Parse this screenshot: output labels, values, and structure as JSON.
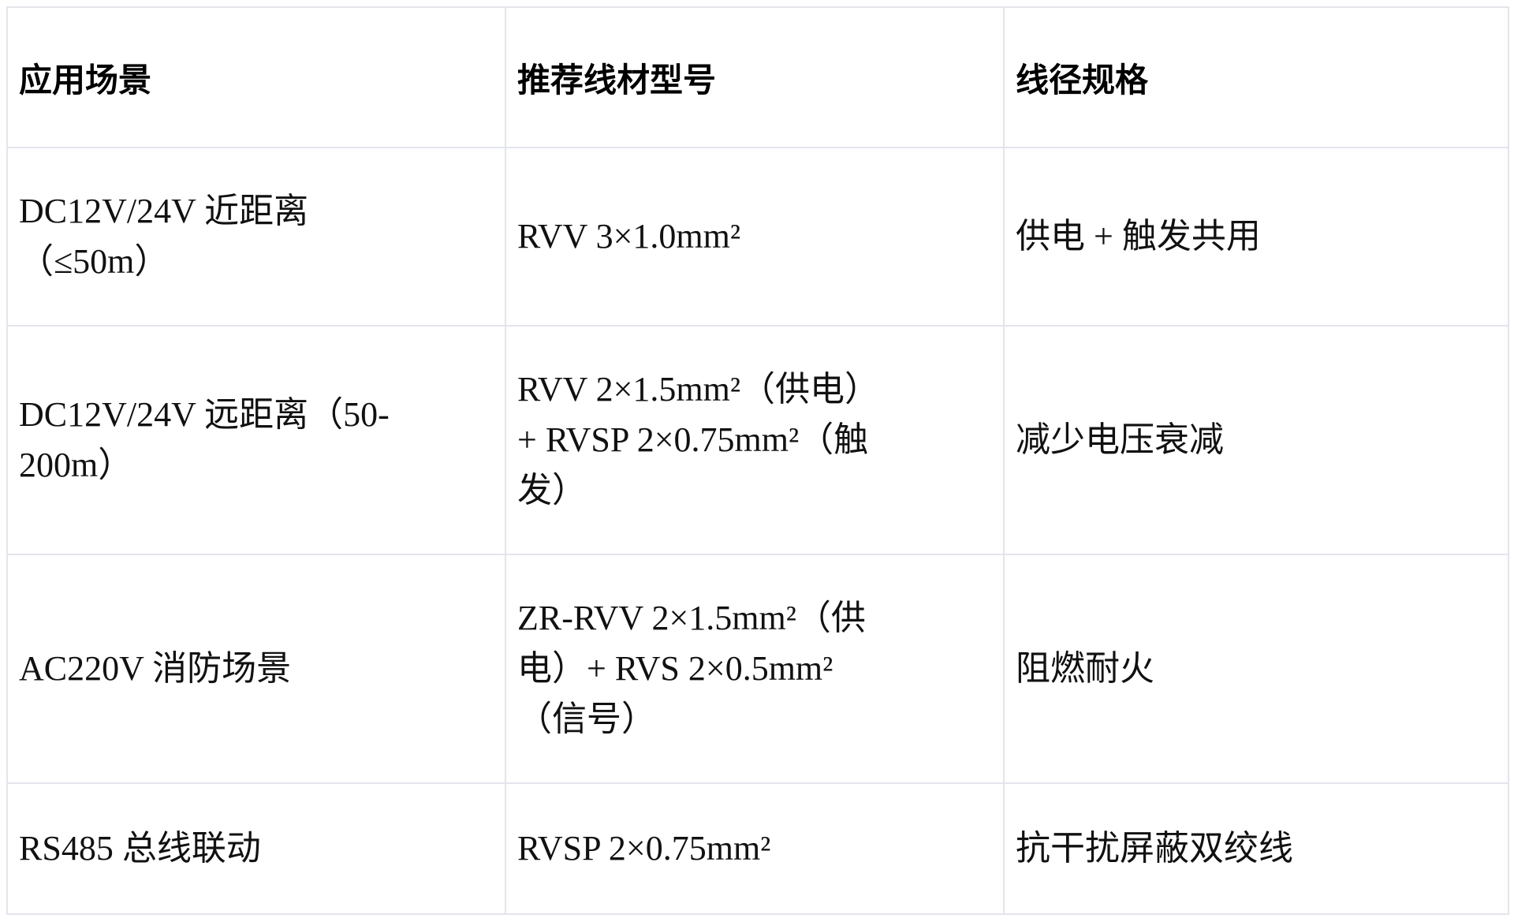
{
  "table": {
    "columns": {
      "scenario": "应用场景",
      "wire": "推荐线材型号",
      "spec": "线径规格"
    },
    "rows": [
      {
        "scenario": "DC12V/24V 近距离\n（≤50m）",
        "wire": "RVV 3×1.0mm²",
        "spec": "供电 + 触发共用"
      },
      {
        "scenario": "DC12V/24V 远距离（50-\n200m）",
        "wire": "RVV 2×1.5mm²（供电）\n+ RVSP 2×0.75mm²（触\n发）",
        "spec": "减少电压衰减"
      },
      {
        "scenario": "AC220V 消防场景",
        "wire": "ZR-RVV 2×1.5mm²（供\n电）+ RVS 2×0.5mm²\n（信号）",
        "spec": "阻燃耐火"
      },
      {
        "scenario": "RS485 总线联动",
        "wire": "RVSP 2×0.75mm²",
        "spec": "抗干扰屏蔽双绞线"
      }
    ]
  },
  "colors": {
    "border": "#e4e5ec",
    "header_text": "#000000",
    "body_text": "#111111",
    "background": "#ffffff"
  }
}
